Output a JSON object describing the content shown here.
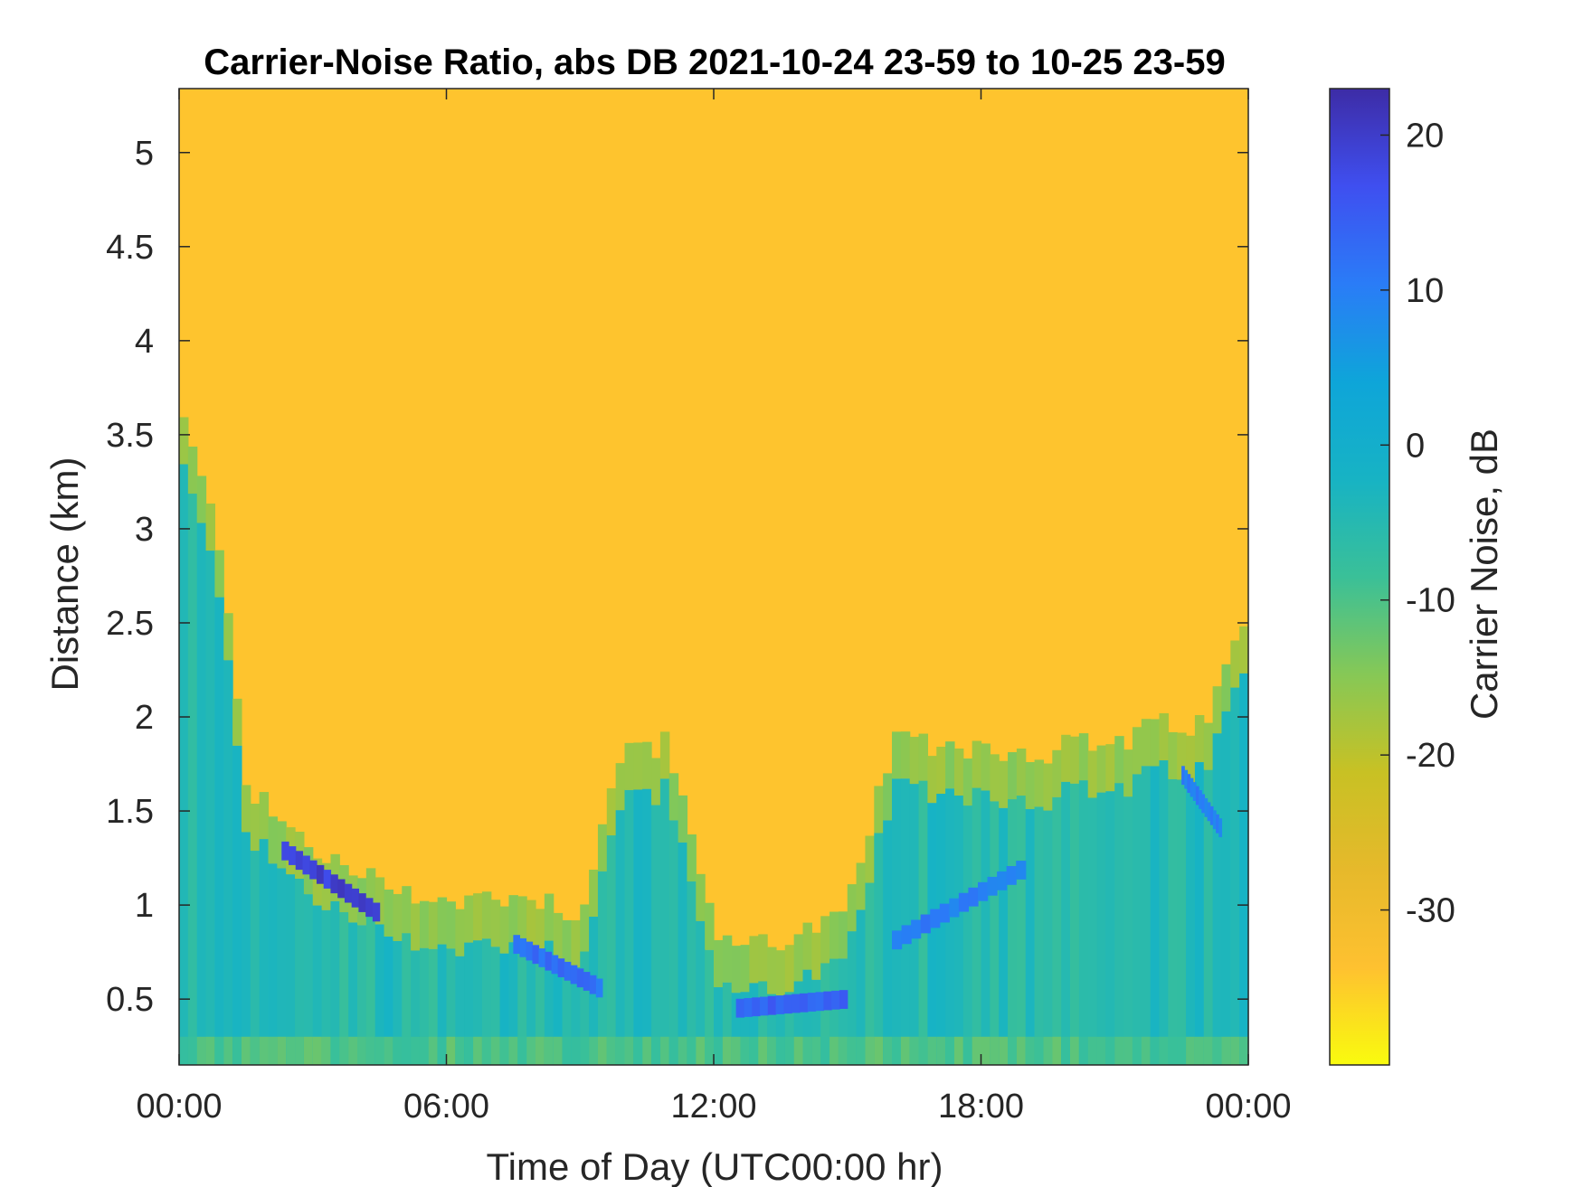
{
  "chart_data": {
    "type": "heatmap",
    "title": "Carrier-Noise Ratio, abs DB 2021-10-24 23-59 to 10-25 23-59",
    "xlabel": "Time of Day (UTC00:00 hr)",
    "ylabel": "Distance (km)",
    "colorbar_label": "Carrier Noise, dB",
    "x_range_hours": [
      0,
      24
    ],
    "x_ticks": [
      0,
      6,
      12,
      18,
      24
    ],
    "x_tick_labels": [
      "00:00",
      "06:00",
      "12:00",
      "18:00",
      "00:00"
    ],
    "y_range": [
      0.15,
      5.34
    ],
    "y_ticks": [
      0.5,
      1,
      1.5,
      2,
      2.5,
      3,
      3.5,
      4,
      4.5,
      5
    ],
    "y_tick_labels": [
      "0.5",
      "1",
      "1.5",
      "2",
      "2.5",
      "3",
      "3.5",
      "4",
      "4.5",
      "5"
    ],
    "colorbar_range": [
      -40,
      23
    ],
    "colorbar_ticks": [
      20,
      10,
      0,
      -10,
      -20,
      -30
    ],
    "colorbar_tick_labels": [
      "20",
      "10",
      "0",
      "-10",
      "-20",
      "-30"
    ],
    "colormap": [
      "#f9fb0e",
      "#fec130",
      "#e6b92b",
      "#c8c124",
      "#86c856",
      "#3ac098",
      "#17b3c4",
      "#0ea5d9",
      "#2a7cf7",
      "#3f4ff0",
      "#3d2ca6"
    ],
    "background_dB": -34,
    "lower_boundary": {
      "description": "height (km) below which low-level high-CNR layer extends, by hour",
      "hours": [
        0,
        1,
        1.5,
        2,
        3,
        4,
        5,
        6,
        7,
        8,
        9,
        10,
        11,
        12,
        13,
        14,
        15,
        16,
        17,
        18,
        19,
        20,
        21,
        22,
        23,
        24
      ],
      "height_km": [
        3.4,
        2.6,
        1.4,
        1.25,
        1.05,
        0.9,
        0.85,
        0.75,
        0.8,
        0.8,
        0.7,
        1.6,
        1.6,
        0.6,
        0.55,
        0.6,
        0.7,
        1.6,
        1.6,
        1.6,
        1.55,
        1.6,
        1.6,
        1.7,
        1.7,
        2.3
      ],
      "cnr_dB": -5
    },
    "strong_returns": {
      "description": "bands of strongest carrier-noise values (dB)",
      "segments": [
        {
          "hour_start": 2.3,
          "hour_end": 4.5,
          "height_start_km": 1.3,
          "height_end_km": 0.95,
          "cnr_dB": 21
        },
        {
          "hour_start": 7.5,
          "hour_end": 9.5,
          "height_start_km": 0.8,
          "height_end_km": 0.55,
          "cnr_dB": 14
        },
        {
          "hour_start": 12.5,
          "hour_end": 15.0,
          "height_start_km": 0.45,
          "height_end_km": 0.5,
          "cnr_dB": 16
        },
        {
          "hour_start": 16.0,
          "hour_end": 19.0,
          "height_start_km": 0.8,
          "height_end_km": 1.2,
          "cnr_dB": 12
        },
        {
          "hour_start": 22.5,
          "hour_end": 23.4,
          "height_start_km": 1.7,
          "height_end_km": 1.4,
          "cnr_dB": 12
        }
      ]
    }
  }
}
